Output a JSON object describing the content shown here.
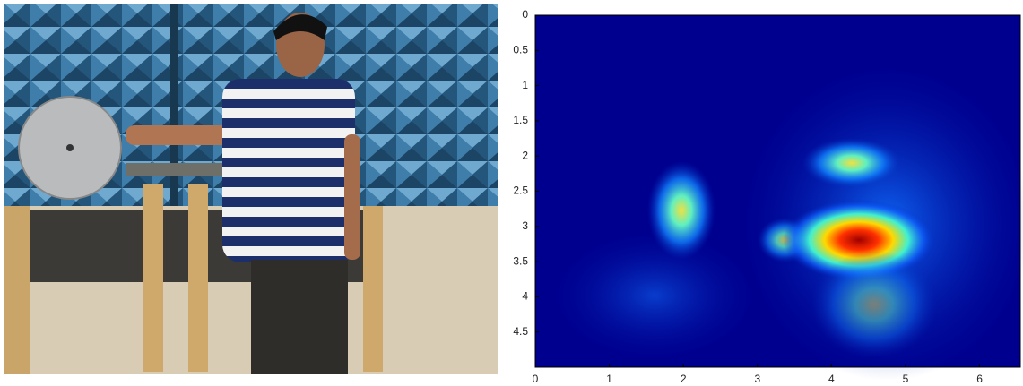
{
  "chart_data": {
    "type": "heatmap",
    "xlim": [
      0,
      6.55
    ],
    "xticks": [
      0,
      1,
      2,
      3,
      4,
      5,
      6
    ],
    "ylim": [
      0,
      5
    ],
    "yticks": [
      0,
      0.5,
      1,
      1.5,
      2,
      2.5,
      3,
      3.5,
      4,
      4.5
    ]
  }
}
